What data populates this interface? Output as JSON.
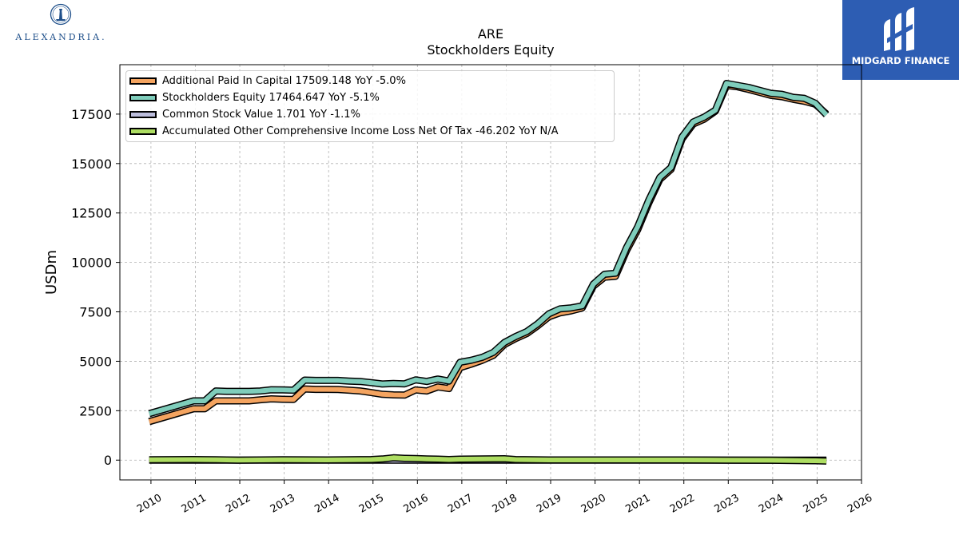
{
  "logos": {
    "left_text": "ALEXANDRIA.",
    "left_icon": "lighthouse-seal-icon",
    "right_text": "MIDGARD FINANCE",
    "right_icon": "midgard-m-icon",
    "right_bg": "#2d5db3"
  },
  "chart_data": {
    "type": "area",
    "title": "ARE",
    "subtitle": "Stockholders  Equity",
    "ylabel": "USDm",
    "xlabel": "",
    "ylim": [
      -1000,
      20000
    ],
    "xlim": [
      2009.3,
      2026.0
    ],
    "yticks": [
      0,
      2500,
      5000,
      7500,
      10000,
      12500,
      15000,
      17500
    ],
    "xticks": [
      "2010",
      "2011",
      "2012",
      "2013",
      "2014",
      "2015",
      "2016",
      "2017",
      "2018",
      "2019",
      "2020",
      "2021",
      "2022",
      "2023",
      "2024",
      "2025",
      "2026"
    ],
    "grid": true,
    "legend_position": "top-left",
    "series": [
      {
        "name": "Additional Paid In Capital",
        "legend_label": "Additional Paid In Capital  17509.148 YoY -5.0%",
        "color": "#f4a460",
        "x": [
          2009.96,
          2010.96,
          2011.21,
          2011.46,
          2011.71,
          2011.96,
          2012.21,
          2012.46,
          2012.71,
          2012.96,
          2013.21,
          2013.46,
          2013.71,
          2013.96,
          2014.21,
          2014.46,
          2014.71,
          2014.96,
          2015.21,
          2015.46,
          2015.71,
          2015.96,
          2016.21,
          2016.46,
          2016.71,
          2016.96,
          2017.21,
          2017.46,
          2017.71,
          2017.96,
          2018.21,
          2018.46,
          2018.71,
          2018.96,
          2019.21,
          2019.46,
          2019.71,
          2019.96,
          2020.21,
          2020.46,
          2020.71,
          2020.96,
          2021.21,
          2021.46,
          2021.71,
          2021.96,
          2022.21,
          2022.46,
          2022.71,
          2022.96,
          2023.21,
          2023.46,
          2023.71,
          2023.96,
          2024.21,
          2024.46,
          2024.71,
          2024.96,
          2025.21
        ],
        "values": [
          1950,
          2600,
          2600,
          3000,
          3000,
          3000,
          3000,
          3050,
          3100,
          3080,
          3070,
          3600,
          3580,
          3580,
          3570,
          3540,
          3500,
          3420,
          3330,
          3300,
          3290,
          3550,
          3500,
          3700,
          3620,
          4680,
          4850,
          5050,
          5300,
          5850,
          6150,
          6400,
          6800,
          7250,
          7450,
          7550,
          7700,
          8800,
          9250,
          9300,
          10600,
          11650,
          13000,
          14200,
          14700,
          16250,
          17000,
          17250,
          17650,
          18950,
          18880,
          18750,
          18600,
          18450,
          18380,
          18250,
          18150,
          18000,
          17509
        ]
      },
      {
        "name": "Stockholders Equity",
        "legend_label": "Stockholders Equity  17464.647 YoY -5.1%",
        "color": "#7fcdbb",
        "x": [
          2009.96,
          2010.96,
          2011.21,
          2011.46,
          2011.71,
          2011.96,
          2012.21,
          2012.46,
          2012.71,
          2012.96,
          2013.21,
          2013.46,
          2013.71,
          2013.96,
          2014.21,
          2014.46,
          2014.71,
          2014.96,
          2015.21,
          2015.46,
          2015.71,
          2015.96,
          2016.21,
          2016.46,
          2016.71,
          2016.96,
          2017.21,
          2017.46,
          2017.71,
          2017.96,
          2018.21,
          2018.46,
          2018.71,
          2018.96,
          2019.21,
          2019.46,
          2019.71,
          2019.96,
          2020.21,
          2020.46,
          2020.71,
          2020.96,
          2021.21,
          2021.46,
          2021.71,
          2021.96,
          2022.21,
          2022.46,
          2022.71,
          2022.96,
          2023.21,
          2023.46,
          2023.71,
          2023.96,
          2024.21,
          2024.46,
          2024.71,
          2024.96,
          2025.21
        ],
        "values": [
          2350,
          3000,
          3000,
          3500,
          3480,
          3480,
          3480,
          3500,
          3560,
          3550,
          3540,
          4050,
          4030,
          4030,
          4030,
          4000,
          3980,
          3920,
          3850,
          3880,
          3860,
          4060,
          3980,
          4100,
          4000,
          4950,
          5050,
          5200,
          5450,
          5950,
          6250,
          6500,
          6900,
          7400,
          7650,
          7700,
          7800,
          8900,
          9400,
          9450,
          10750,
          11800,
          13150,
          14300,
          14800,
          16350,
          17100,
          17350,
          17700,
          19050,
          18950,
          18850,
          18700,
          18550,
          18500,
          18350,
          18300,
          18050,
          17465
        ]
      },
      {
        "name": "Common Stock Value",
        "legend_label": "Common Stock Value  1.701 YoY -1.1%",
        "color": "#bcbddc",
        "x": [
          2009.96,
          2011.96,
          2013.96,
          2015.96,
          2017.96,
          2019.96,
          2021.96,
          2023.96,
          2025.21
        ],
        "values": [
          0.4,
          0.5,
          0.7,
          0.7,
          0.9,
          1.2,
          1.6,
          1.7,
          1.7
        ]
      },
      {
        "name": "Accumulated Other Comprehensive Income Loss Net Of Tax",
        "legend_label": "Accumulated Other Comprehensive Income Loss Net Of Tax  -46.202 YoY N/A",
        "color": "#addd62",
        "x": [
          2009.96,
          2010.96,
          2011.46,
          2011.96,
          2012.96,
          2013.96,
          2014.96,
          2015.21,
          2015.46,
          2015.71,
          2015.96,
          2016.21,
          2016.46,
          2016.71,
          2016.96,
          2017.46,
          2017.96,
          2018.21,
          2018.96,
          2019.96,
          2020.96,
          2021.96,
          2022.96,
          2023.96,
          2024.96,
          2025.21
        ],
        "values": [
          20,
          30,
          20,
          0,
          20,
          10,
          30,
          60,
          120,
          90,
          80,
          60,
          50,
          30,
          50,
          60,
          70,
          30,
          10,
          10,
          10,
          10,
          0,
          -5,
          -30,
          -46
        ]
      }
    ]
  }
}
